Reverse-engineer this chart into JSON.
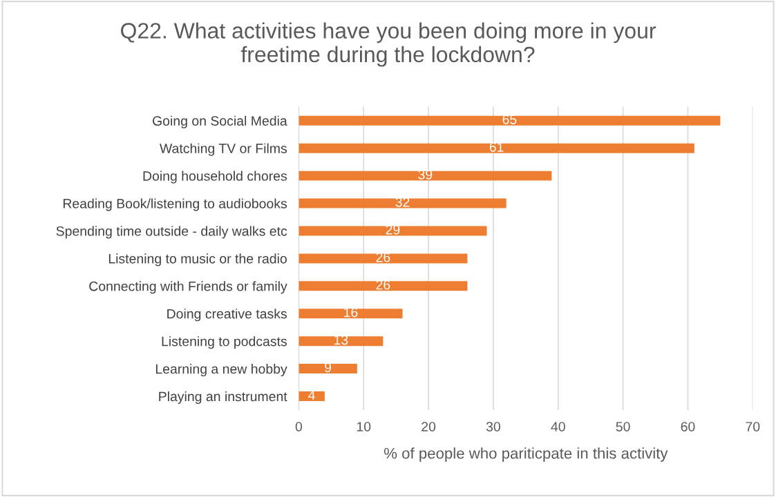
{
  "chart_data": {
    "type": "bar",
    "orientation": "horizontal",
    "title": "Q22. What activities have you been doing more in your\nfreetime during the lockdown?",
    "xlabel": "% of people who pariticpate in this activity",
    "categories": [
      "Going on Social Media",
      "Watching TV or Films",
      "Doing household chores",
      "Reading Book/listening to audiobooks",
      "Spending time outside - daily walks etc",
      "Listening to music or the radio",
      "Connecting with Friends or family",
      "Doing creative tasks",
      "Listening to podcasts",
      "Learning a new hobby",
      "Playing an instrument"
    ],
    "values": [
      65,
      61,
      39,
      32,
      29,
      26,
      26,
      16,
      13,
      9,
      4
    ],
    "color": "#ed7d31",
    "data_labels": true,
    "xlim": [
      0,
      70
    ],
    "xticks": [
      0,
      10,
      20,
      30,
      40,
      50,
      60,
      70
    ],
    "grid": "x",
    "legend": false
  }
}
